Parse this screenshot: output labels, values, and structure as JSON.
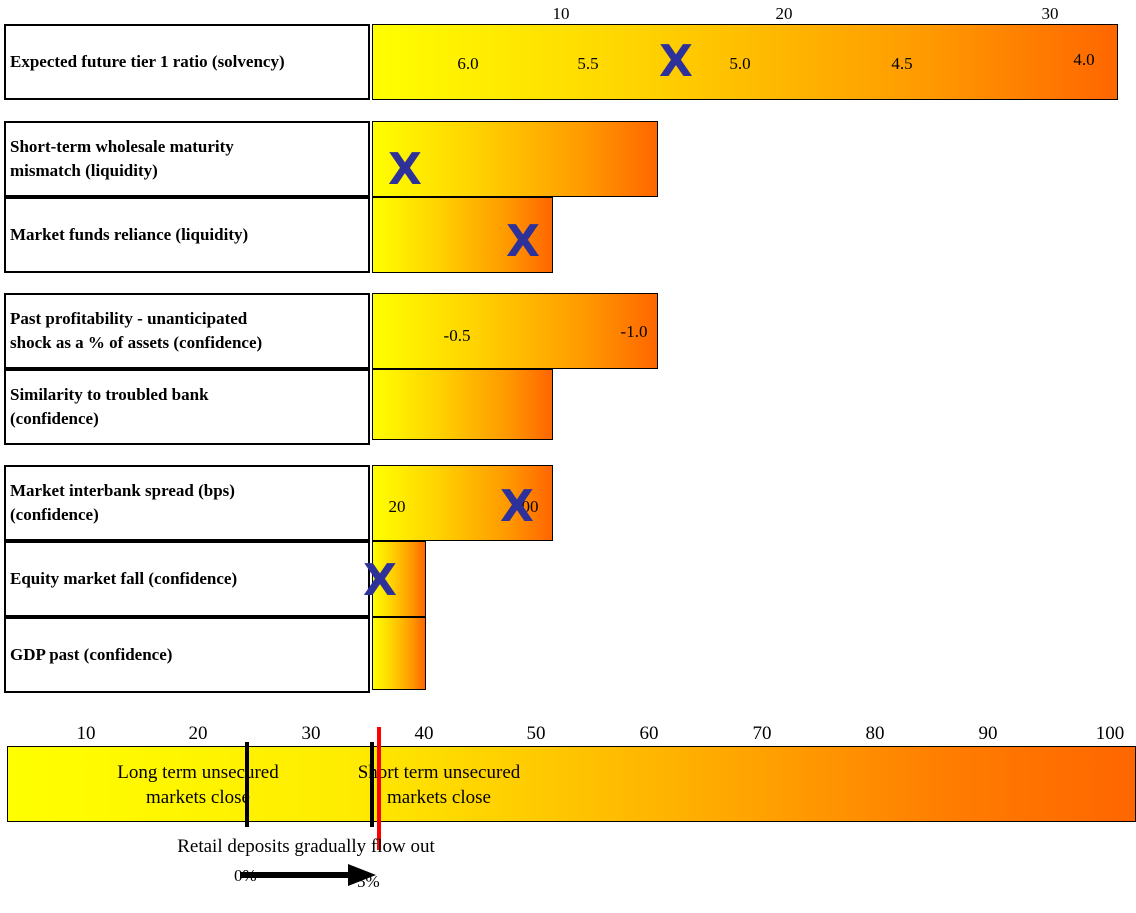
{
  "top_axis": {
    "ticks": [
      "10",
      "20",
      "30"
    ]
  },
  "indicators": [
    {
      "label_line1": "Expected future tier 1 ratio (solvency)",
      "label_line2": "",
      "values": [
        "6.0",
        "5.5",
        "5.0",
        "4.5",
        "4.0"
      ],
      "marker": "X"
    },
    {
      "label_line1": "Short-term wholesale maturity",
      "label_line2": "mismatch (liquidity)",
      "values": [],
      "marker": "X"
    },
    {
      "label_line1": "Market funds reliance (liquidity)",
      "label_line2": "",
      "values": [],
      "marker": "X"
    },
    {
      "label_line1": "Past profitability - unanticipated",
      "label_line2": "shock as a % of assets (confidence)",
      "values": [
        "-0.5",
        "-1.0"
      ],
      "marker": ""
    },
    {
      "label_line1": "Similarity to troubled bank",
      "label_line2": "(confidence)",
      "values": [],
      "marker": ""
    },
    {
      "label_line1": "Market interbank spread (bps)",
      "label_line2": "(confidence)",
      "values": [
        "20",
        "00"
      ],
      "marker": "X"
    },
    {
      "label_line1": "Equity market fall (confidence)",
      "label_line2": "",
      "values": [],
      "marker": "X"
    },
    {
      "label_line1": "GDP past (confidence)",
      "label_line2": "",
      "values": [],
      "marker": ""
    }
  ],
  "bottom_axis": {
    "ticks": [
      "10",
      "20",
      "30",
      "40",
      "50",
      "60",
      "70",
      "80",
      "90",
      "100"
    ]
  },
  "scale_annotations": {
    "long_term_line1": "Long term unsecured",
    "long_term_line2": "markets close",
    "short_term_line1": "Short term unsecured",
    "short_term_line2": "markets close"
  },
  "retail": {
    "caption": "Retail deposits gradually flow out",
    "start_label": "0%",
    "end_label": "5%"
  },
  "colors": {
    "gradient_start": "#ffff00",
    "gradient_end": "#ff6600",
    "marker": "#2e3199",
    "threshold_line": "#ff0000"
  }
}
